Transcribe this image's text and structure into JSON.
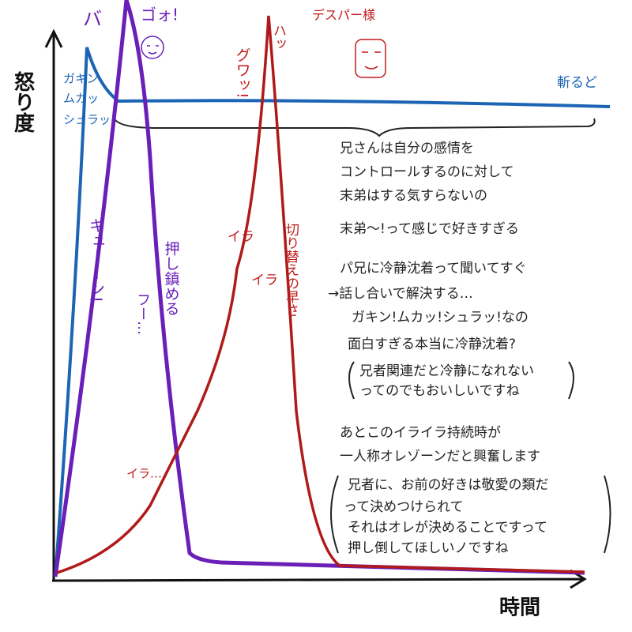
{
  "axes": {
    "y_label": "怒り度",
    "x_label": "時間"
  },
  "blue": {
    "left_labels": [
      "ガキン",
      "ムカッ",
      "シュラッ"
    ],
    "end_label": "斬るど"
  },
  "purple": {
    "peak_label": "バ",
    "roar": "ゴォ!",
    "rise": "ギューーン!",
    "suppress": "押し鎮める",
    "sigh": "フー…"
  },
  "red": {
    "ha": "ハッ",
    "gwa": "グワッ!",
    "name": "デスパー様",
    "ira1": "イラ",
    "ira2": "イラ",
    "ira3": "イラ…",
    "switch": "切り替えの早さ"
  },
  "notes": [
    "兄さんは自分の感情を",
    "コントロールするのに対して",
    "末弟はする気すらないの",
    "末弟〜!って感じで好きすぎる",
    "パ兄に冷静沈着って聞いてすぐ",
    "→話し合いで解決する…",
    "ガキン!ムカッ!シュラッ!なの",
    "面白すぎる本当に冷静沈着?",
    "兄者関連だと冷静になれない",
    "ってのでもおいしいですね",
    "あとこのイライラ持続時が",
    "一人称オレゾーンだと興奮します",
    "兄者に、お前の好きは敬愛の類だ",
    "って決めつけられて",
    "それはオレが決めることですって",
    "押し倒してほしいノですね"
  ]
}
